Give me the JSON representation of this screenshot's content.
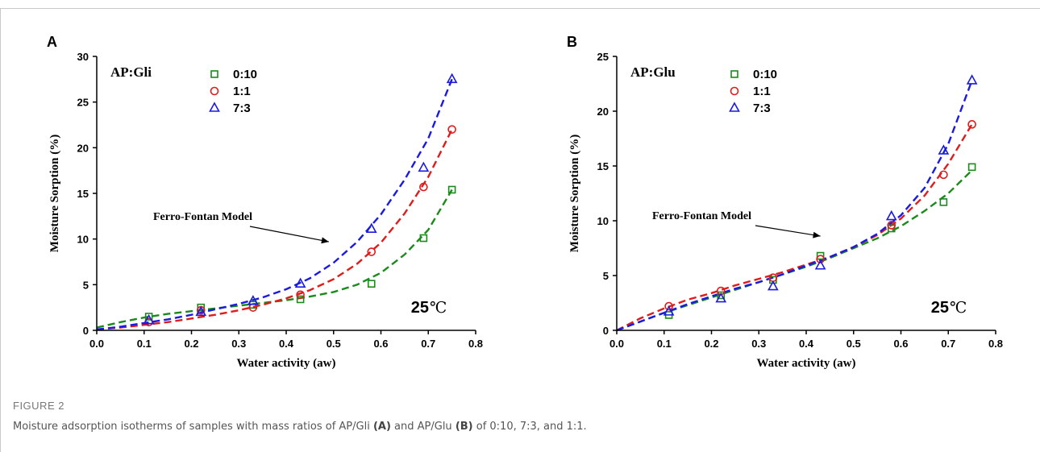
{
  "figure_label": "FIGURE 2",
  "caption": {
    "part1": "Moisture adsorption isotherms of samples with mass ratios of AP/Gli ",
    "label_a": "(A)",
    "part2": " and AP/Glu ",
    "label_b": "(B)",
    "part3": " of 0:10, 7:3, and 1:1."
  },
  "colors": {
    "0:10": "#1a8a1a",
    "1:1": "#e01b1b",
    "7:3": "#1a1ae0"
  },
  "chart_data": [
    {
      "panel": "A",
      "type": "scatter",
      "title": "AP:Gli",
      "xlabel": "Water activity (aw)",
      "ylabel": "Moisture Sorption (%)",
      "xlim": [
        0.0,
        0.8
      ],
      "ylim": [
        0,
        30
      ],
      "xticks": [
        "0.0",
        "0.1",
        "0.2",
        "0.3",
        "0.4",
        "0.5",
        "0.6",
        "0.7",
        "0.8"
      ],
      "yticks": [
        "0",
        "5",
        "10",
        "15",
        "20",
        "25",
        "30"
      ],
      "annotation": "Ferro-Fontan Model",
      "temperature_value": "25",
      "temperature_unit": "℃",
      "legend_position": "top-center",
      "series": [
        {
          "name": "0:10",
          "marker": "square",
          "color": "#1a8a1a",
          "x": [
            0.11,
            0.22,
            0.33,
            0.43,
            0.58,
            0.69,
            0.75
          ],
          "y": [
            1.5,
            2.5,
            2.8,
            3.4,
            5.1,
            10.1,
            15.4
          ],
          "fit_x": [
            0.0,
            0.05,
            0.1,
            0.15,
            0.2,
            0.25,
            0.3,
            0.35,
            0.4,
            0.45,
            0.5,
            0.55,
            0.6,
            0.65,
            0.7,
            0.75
          ],
          "fit_y": [
            0.3,
            0.9,
            1.4,
            1.8,
            2.1,
            2.4,
            2.7,
            3.0,
            3.3,
            3.7,
            4.2,
            5.0,
            6.3,
            8.3,
            11.0,
            15.4
          ]
        },
        {
          "name": "1:1",
          "marker": "circle",
          "color": "#e01b1b",
          "x": [
            0.11,
            0.22,
            0.33,
            0.43,
            0.58,
            0.69,
            0.75
          ],
          "y": [
            0.9,
            2.2,
            2.5,
            3.9,
            8.6,
            15.7,
            22.0
          ],
          "fit_x": [
            0.0,
            0.05,
            0.1,
            0.15,
            0.2,
            0.25,
            0.3,
            0.35,
            0.4,
            0.45,
            0.5,
            0.55,
            0.6,
            0.65,
            0.7,
            0.75
          ],
          "fit_y": [
            0.1,
            0.3,
            0.6,
            0.9,
            1.3,
            1.7,
            2.2,
            2.8,
            3.5,
            4.4,
            5.6,
            7.3,
            9.6,
            12.8,
            16.8,
            22.0
          ]
        },
        {
          "name": "7:3",
          "marker": "triangle",
          "color": "#1a1ae0",
          "x": [
            0.11,
            0.22,
            0.33,
            0.43,
            0.58,
            0.69,
            0.75
          ],
          "y": [
            1.1,
            2.0,
            3.2,
            5.1,
            11.1,
            17.8,
            27.5
          ],
          "fit_x": [
            0.0,
            0.05,
            0.1,
            0.15,
            0.2,
            0.25,
            0.3,
            0.35,
            0.4,
            0.45,
            0.5,
            0.55,
            0.6,
            0.65,
            0.7,
            0.75
          ],
          "fit_y": [
            0.1,
            0.4,
            0.8,
            1.2,
            1.7,
            2.3,
            2.9,
            3.6,
            4.5,
            5.7,
            7.4,
            9.7,
            12.7,
            16.5,
            21.0,
            27.5
          ]
        }
      ]
    },
    {
      "panel": "B",
      "type": "scatter",
      "title": "AP:Glu",
      "xlabel": "Water activity (aw)",
      "ylabel": "Moisture Sorption (%)",
      "xlim": [
        0.0,
        0.8
      ],
      "ylim": [
        0,
        25
      ],
      "xticks": [
        "0.0",
        "0.1",
        "0.2",
        "0.3",
        "0.4",
        "0.5",
        "0.6",
        "0.7",
        "0.8"
      ],
      "yticks": [
        "0",
        "5",
        "10",
        "15",
        "20",
        "25"
      ],
      "annotation": "Ferro-Fontan Model",
      "temperature_value": "25",
      "temperature_unit": "℃",
      "legend_position": "top-center",
      "series": [
        {
          "name": "0:10",
          "marker": "square",
          "color": "#1a8a1a",
          "x": [
            0.11,
            0.22,
            0.33,
            0.43,
            0.58,
            0.69,
            0.75
          ],
          "y": [
            1.4,
            3.2,
            4.6,
            6.8,
            9.3,
            11.7,
            14.9
          ],
          "fit_x": [
            0.0,
            0.05,
            0.1,
            0.15,
            0.2,
            0.25,
            0.3,
            0.35,
            0.4,
            0.45,
            0.5,
            0.55,
            0.6,
            0.65,
            0.7,
            0.75
          ],
          "fit_y": [
            0.0,
            0.8,
            1.6,
            2.3,
            3.0,
            3.7,
            4.4,
            5.1,
            5.8,
            6.6,
            7.5,
            8.4,
            9.5,
            10.9,
            12.5,
            14.6
          ]
        },
        {
          "name": "1:1",
          "marker": "circle",
          "color": "#e01b1b",
          "x": [
            0.11,
            0.22,
            0.33,
            0.43,
            0.58,
            0.69,
            0.75
          ],
          "y": [
            2.2,
            3.6,
            4.8,
            6.5,
            9.6,
            14.2,
            18.8
          ],
          "fit_x": [
            0.0,
            0.05,
            0.1,
            0.15,
            0.2,
            0.25,
            0.3,
            0.35,
            0.4,
            0.45,
            0.5,
            0.55,
            0.6,
            0.65,
            0.7,
            0.75
          ],
          "fit_y": [
            0.0,
            1.1,
            2.0,
            2.8,
            3.4,
            4.1,
            4.7,
            5.3,
            6.0,
            6.7,
            7.6,
            8.7,
            10.2,
            12.3,
            15.2,
            18.8
          ]
        },
        {
          "name": "7:3",
          "marker": "triangle",
          "color": "#1a1ae0",
          "x": [
            0.11,
            0.22,
            0.33,
            0.43,
            0.58,
            0.69,
            0.75
          ],
          "y": [
            1.7,
            2.9,
            4.0,
            5.9,
            10.4,
            16.4,
            22.8
          ],
          "fit_x": [
            0.0,
            0.05,
            0.1,
            0.15,
            0.2,
            0.25,
            0.3,
            0.35,
            0.4,
            0.45,
            0.5,
            0.55,
            0.6,
            0.65,
            0.7,
            0.75
          ],
          "fit_y": [
            0.0,
            0.8,
            1.6,
            2.4,
            3.1,
            3.8,
            4.4,
            5.1,
            5.9,
            6.7,
            7.6,
            8.8,
            10.5,
            13.0,
            17.0,
            22.8
          ]
        }
      ]
    }
  ]
}
